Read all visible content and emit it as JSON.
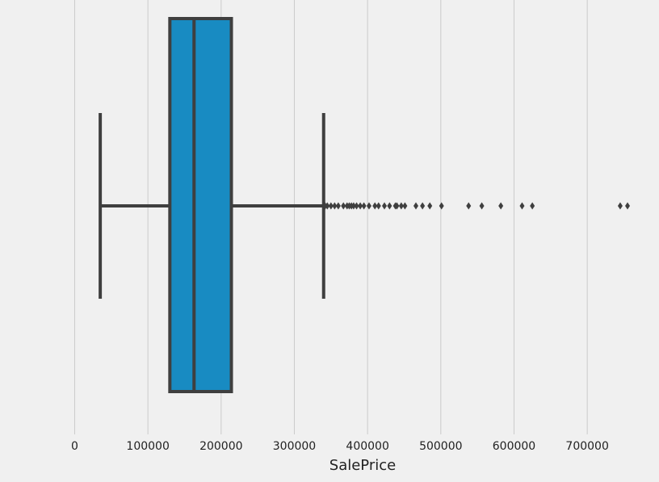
{
  "chart_data": {
    "type": "box",
    "xlabel": "SalePrice",
    "xlim": [
      -102000,
      798000
    ],
    "xticks": [
      0,
      100000,
      200000,
      300000,
      400000,
      500000,
      600000,
      700000
    ],
    "grid": true,
    "color": "#188bc2",
    "line_color": "#3f3f3f",
    "boxes": [
      {
        "whislo": 34900,
        "q1": 129975,
        "med": 163000,
        "q3": 214000,
        "whishi": 340000,
        "fliers": [
          342000,
          345000,
          350000,
          355000,
          360000,
          367000,
          372000,
          375000,
          378000,
          381000,
          385000,
          390000,
          395000,
          402000,
          410000,
          415000,
          423000,
          430000,
          438000,
          440000,
          446000,
          451000,
          466000,
          475000,
          485000,
          501000,
          538000,
          556000,
          582000,
          611000,
          625000,
          745000,
          755000
        ]
      }
    ]
  }
}
